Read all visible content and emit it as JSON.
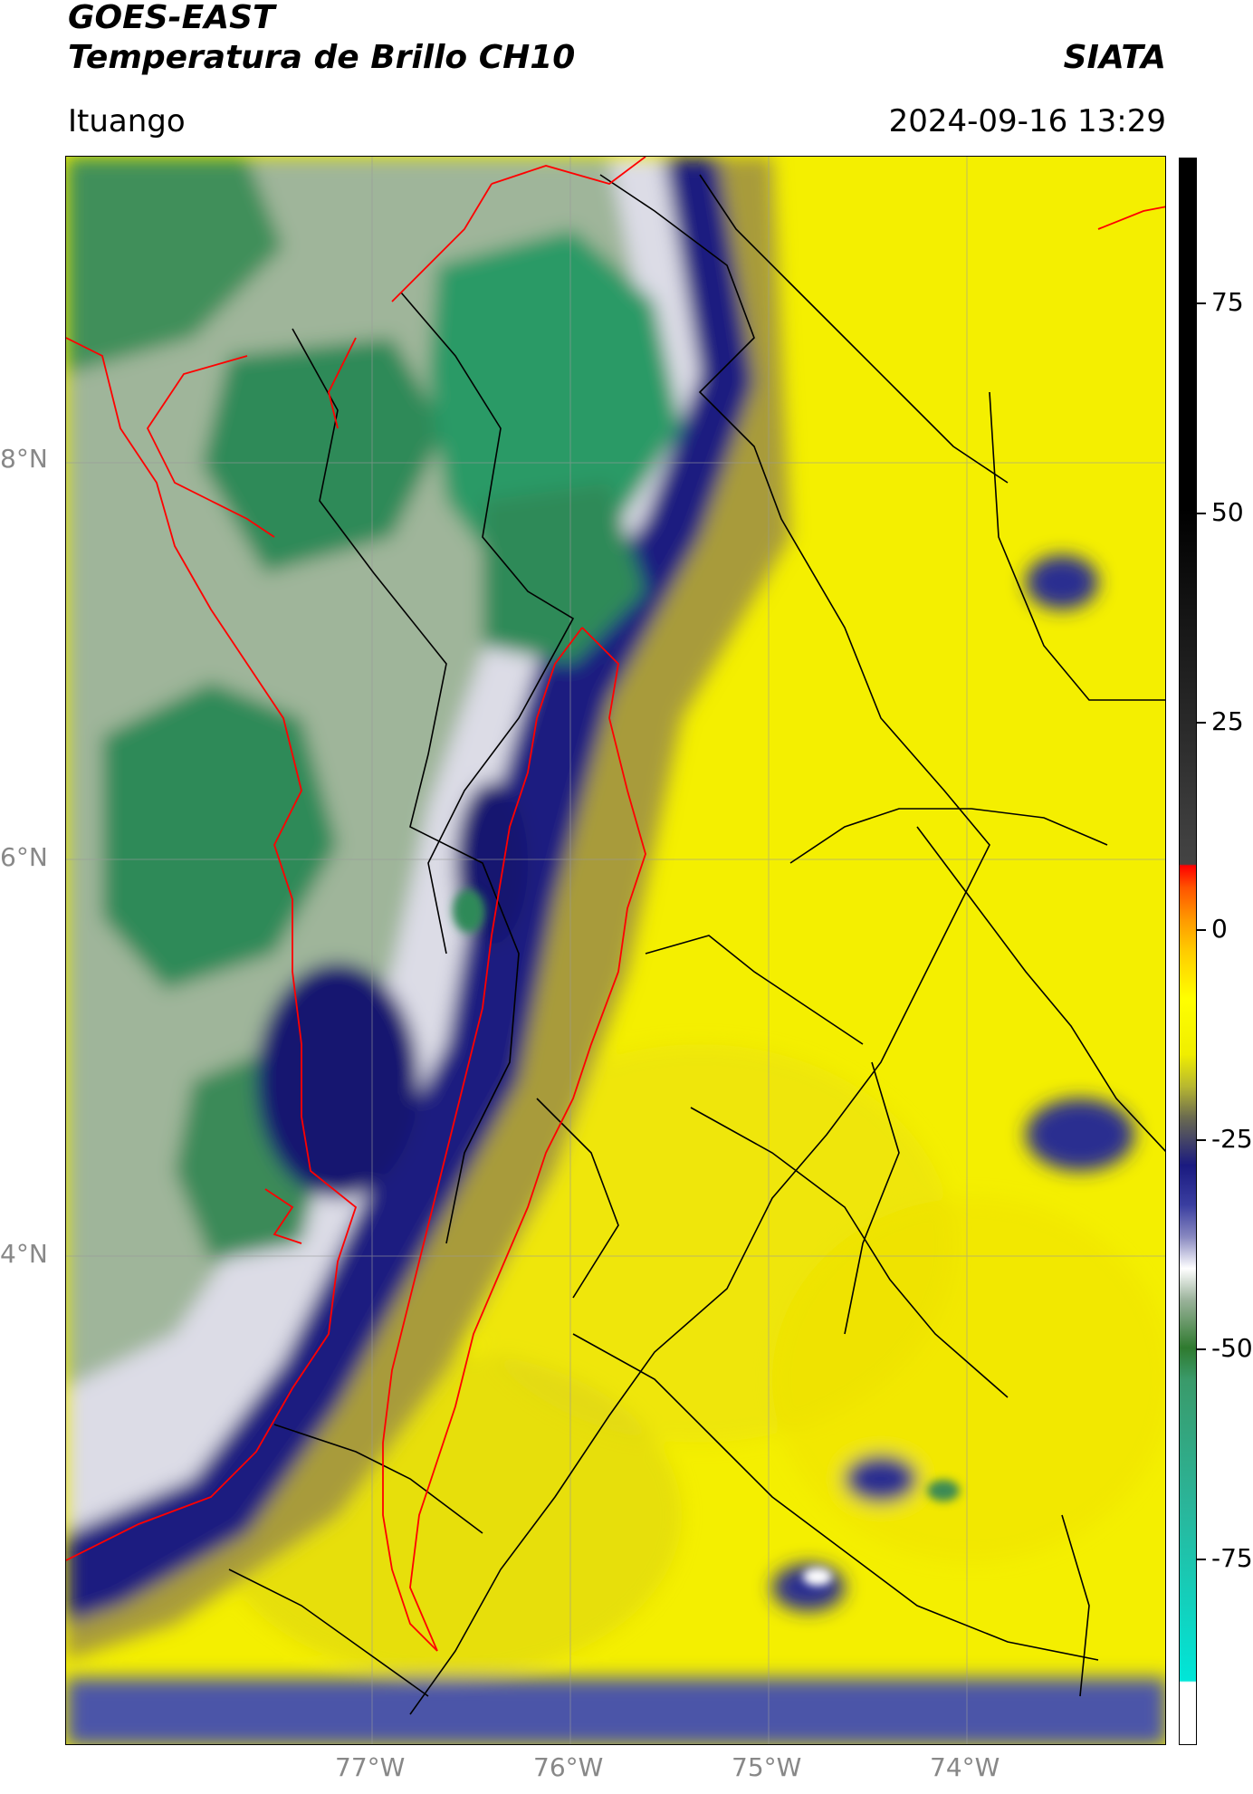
{
  "header": {
    "satellite": "GOES-EAST",
    "product": "Temperatura de Brillo CH10",
    "organization": "SIATA",
    "location": "Ituango",
    "datetime": "2024-09-16 13:29"
  },
  "axes": {
    "latitude_labels": [
      "8°N",
      "6°N",
      "4°N"
    ],
    "longitude_labels": [
      "77°W",
      "76°W",
      "75°W",
      "74°W"
    ]
  },
  "colorbar": {
    "tick_labels": [
      "75",
      "50",
      "25",
      "0",
      "-25",
      "-50",
      "-75"
    ]
  },
  "colors": {
    "warm_yellow": "#f2ee00",
    "cold_navy": "#14197a",
    "very_cold_green": "#2e8b57",
    "red_boundary": "#ff0000",
    "black_boundary": "#000000"
  }
}
